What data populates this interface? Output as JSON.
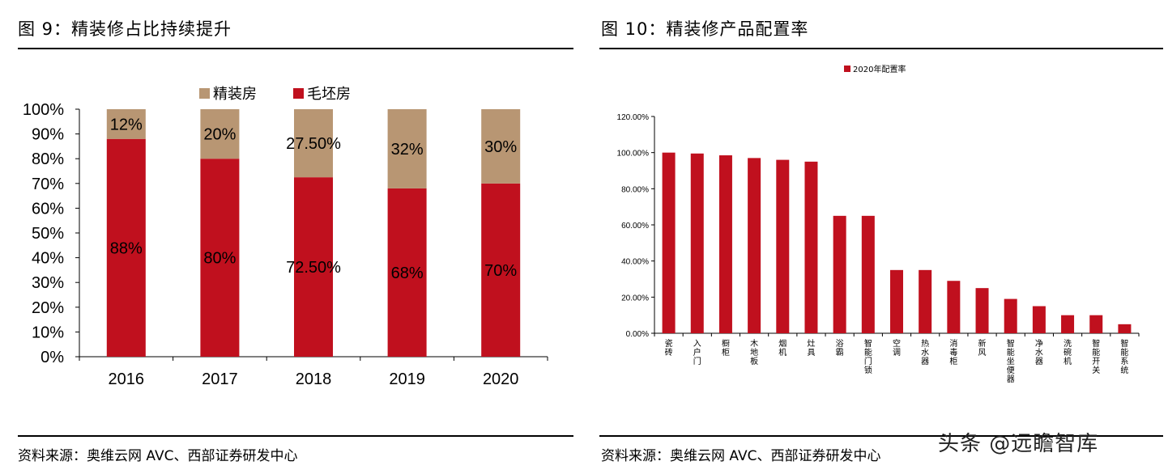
{
  "left": {
    "title": "图 9：精装修占比持续提升",
    "source": "资料来源：奥维云网 AVC、西部证券研发中心",
    "chart_data": {
      "type": "bar",
      "stacked": true,
      "categories": [
        "2016",
        "2017",
        "2018",
        "2019",
        "2020"
      ],
      "series": [
        {
          "name": "毛坯房",
          "values": [
            88,
            80,
            72.5,
            68,
            70
          ],
          "labels": [
            "88%",
            "80%",
            "72.50%",
            "68%",
            "70%"
          ],
          "color": "#c0101e"
        },
        {
          "name": "精装房",
          "values": [
            12,
            20,
            27.5,
            32,
            30
          ],
          "labels": [
            "12%",
            "20%",
            "27.50%",
            "32%",
            "30%"
          ],
          "color": "#b89673"
        }
      ],
      "legend_order": [
        "精装房",
        "毛坯房"
      ],
      "ylim": [
        0,
        100
      ],
      "yticks": [
        "0%",
        "10%",
        "20%",
        "30%",
        "40%",
        "50%",
        "60%",
        "70%",
        "80%",
        "90%",
        "100%"
      ],
      "legend_position": "top",
      "grid": false
    }
  },
  "right": {
    "title": "图 10：精装修产品配置率",
    "source": "资料来源：奥维云网 AVC、西部证券研发中心",
    "chart_data": {
      "type": "bar",
      "categories": [
        "瓷砖",
        "入户门",
        "橱柜",
        "木地板",
        "烟机",
        "灶具",
        "浴霸",
        "智能门锁",
        "空调",
        "热水器",
        "消毒柜",
        "新风",
        "智能坐便器",
        "净水器",
        "洗碗机",
        "智能开关",
        "智能系统"
      ],
      "series": [
        {
          "name": "2020年配置率",
          "values": [
            100,
            99.5,
            98.5,
            97,
            96,
            95,
            65,
            65,
            35,
            35,
            29,
            25,
            19,
            15,
            10,
            10,
            5
          ],
          "color": "#c0101e"
        }
      ],
      "ylim": [
        0,
        120
      ],
      "yticks": [
        "0.00%",
        "20.00%",
        "40.00%",
        "60.00%",
        "80.00%",
        "100.00%",
        "120.00%"
      ],
      "legend_position": "top",
      "grid": false
    }
  },
  "watermark": "头条 @远瞻智库"
}
